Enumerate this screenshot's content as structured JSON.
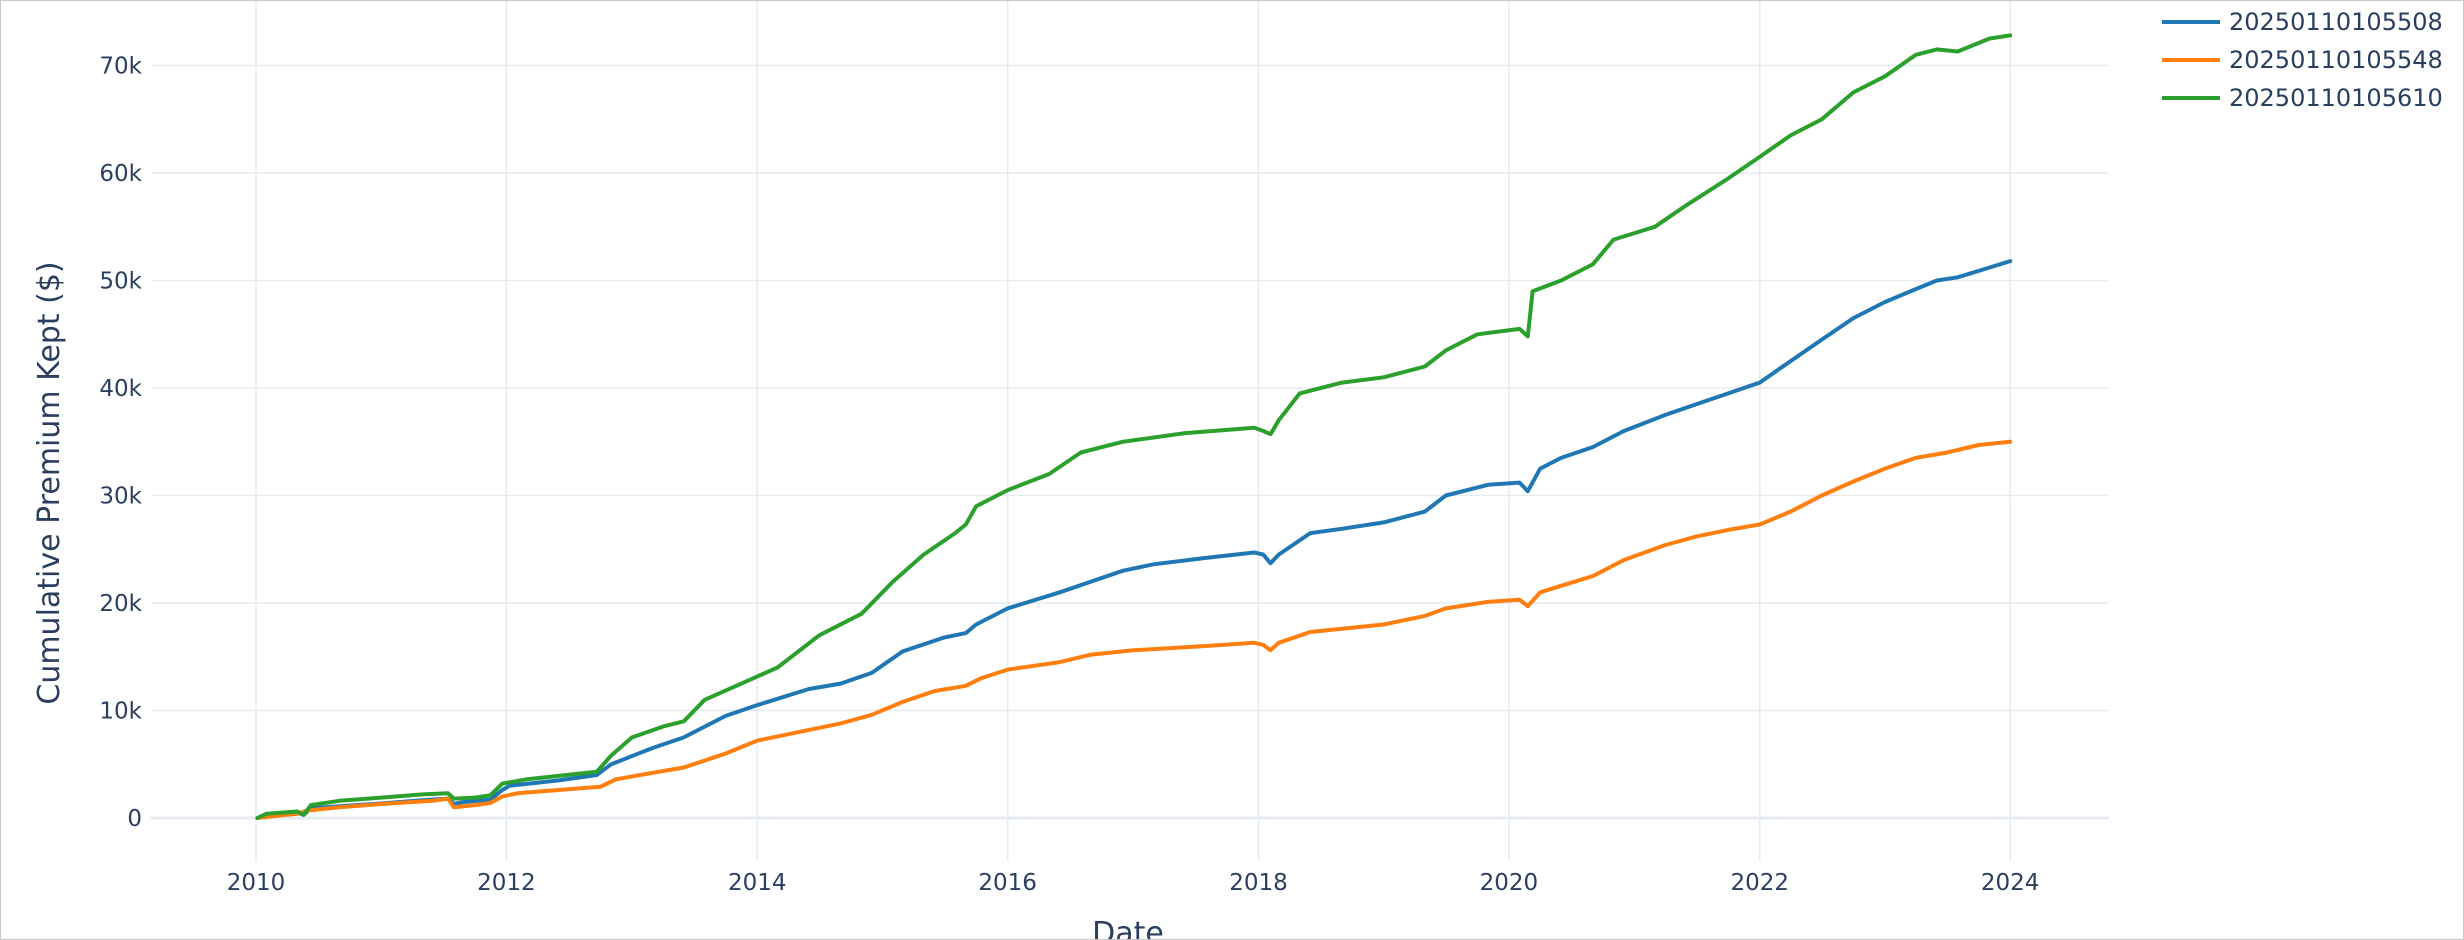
{
  "chart_data": {
    "type": "line",
    "title": "",
    "xlabel": "Date",
    "ylabel": "Cumulative Premium Kept ($)",
    "xlim": [
      "2009-03-01",
      "2024-10-15"
    ],
    "ylim": [
      -4000,
      76000
    ],
    "x_ticks": [
      {
        "value": "2010-01-01",
        "label": "2010"
      },
      {
        "value": "2012-01-01",
        "label": "2012"
      },
      {
        "value": "2014-01-01",
        "label": "2014"
      },
      {
        "value": "2016-01-01",
        "label": "2016"
      },
      {
        "value": "2018-01-01",
        "label": "2018"
      },
      {
        "value": "2020-01-01",
        "label": "2020"
      },
      {
        "value": "2022-01-01",
        "label": "2022"
      },
      {
        "value": "2024-01-01",
        "label": "2024"
      }
    ],
    "y_ticks": [
      {
        "value": 0,
        "label": "0"
      },
      {
        "value": 10000,
        "label": "10k"
      },
      {
        "value": 20000,
        "label": "20k"
      },
      {
        "value": 30000,
        "label": "30k"
      },
      {
        "value": 40000,
        "label": "40k"
      },
      {
        "value": 50000,
        "label": "50k"
      },
      {
        "value": 60000,
        "label": "60k"
      },
      {
        "value": 70000,
        "label": "70k"
      }
    ],
    "grid": true,
    "legend_position": "top-right",
    "series": [
      {
        "name": "20250110105508",
        "color": "#1f77b4",
        "points": [
          [
            "2010-01-05",
            0
          ],
          [
            "2010-02-01",
            300
          ],
          [
            "2010-05-01",
            500
          ],
          [
            "2010-05-20",
            300
          ],
          [
            "2010-06-10",
            900
          ],
          [
            "2010-09-01",
            1100
          ],
          [
            "2011-01-01",
            1350
          ],
          [
            "2011-05-01",
            1650
          ],
          [
            "2011-07-15",
            1800
          ],
          [
            "2011-08-01",
            1300
          ],
          [
            "2011-09-01",
            1500
          ],
          [
            "2011-11-15",
            1700
          ],
          [
            "2011-12-20",
            2600
          ],
          [
            "2012-01-10",
            3000
          ],
          [
            "2012-06-01",
            3500
          ],
          [
            "2012-09-20",
            4000
          ],
          [
            "2012-11-01",
            5000
          ],
          [
            "2013-03-01",
            6500
          ],
          [
            "2013-06-01",
            7500
          ],
          [
            "2013-10-01",
            9500
          ],
          [
            "2014-01-01",
            10500
          ],
          [
            "2014-06-01",
            12000
          ],
          [
            "2014-09-01",
            12500
          ],
          [
            "2014-12-01",
            13500
          ],
          [
            "2015-03-01",
            15500
          ],
          [
            "2015-07-01",
            16800
          ],
          [
            "2015-09-01",
            17200
          ],
          [
            "2015-10-01",
            18000
          ],
          [
            "2016-01-01",
            19500
          ],
          [
            "2016-06-01",
            21000
          ],
          [
            "2016-09-01",
            22000
          ],
          [
            "2016-12-01",
            23000
          ],
          [
            "2017-03-01",
            23600
          ],
          [
            "2017-08-01",
            24200
          ],
          [
            "2017-12-20",
            24700
          ],
          [
            "2018-01-15",
            24500
          ],
          [
            "2018-02-05",
            23700
          ],
          [
            "2018-03-01",
            24500
          ],
          [
            "2018-06-01",
            26500
          ],
          [
            "2018-09-01",
            26900
          ],
          [
            "2019-01-01",
            27500
          ],
          [
            "2019-05-01",
            28500
          ],
          [
            "2019-07-01",
            30000
          ],
          [
            "2019-11-01",
            31000
          ],
          [
            "2020-02-01",
            31200
          ],
          [
            "2020-02-25",
            30400
          ],
          [
            "2020-04-01",
            32500
          ],
          [
            "2020-06-01",
            33500
          ],
          [
            "2020-09-01",
            34500
          ],
          [
            "2020-12-01",
            36000
          ],
          [
            "2021-04-01",
            37500
          ],
          [
            "2021-07-01",
            38500
          ],
          [
            "2021-10-01",
            39500
          ],
          [
            "2022-01-01",
            40500
          ],
          [
            "2022-04-01",
            42500
          ],
          [
            "2022-07-01",
            44500
          ],
          [
            "2022-10-01",
            46500
          ],
          [
            "2023-01-01",
            48000
          ],
          [
            "2023-04-01",
            49200
          ],
          [
            "2023-06-01",
            50000
          ],
          [
            "2023-08-01",
            50300
          ],
          [
            "2023-11-01",
            51200
          ],
          [
            "2024-01-01",
            51800
          ]
        ]
      },
      {
        "name": "20250110105548",
        "color": "#ff7f0e",
        "points": [
          [
            "2010-01-05",
            0
          ],
          [
            "2010-03-01",
            200
          ],
          [
            "2010-05-01",
            400
          ],
          [
            "2010-06-01",
            700
          ],
          [
            "2010-09-01",
            1000
          ],
          [
            "2011-01-01",
            1300
          ],
          [
            "2011-06-01",
            1600
          ],
          [
            "2011-07-15",
            1800
          ],
          [
            "2011-08-01",
            1000
          ],
          [
            "2011-10-01",
            1200
          ],
          [
            "2011-11-15",
            1400
          ],
          [
            "2011-12-20",
            2000
          ],
          [
            "2012-02-01",
            2300
          ],
          [
            "2012-06-01",
            2600
          ],
          [
            "2012-10-01",
            2900
          ],
          [
            "2012-11-15",
            3600
          ],
          [
            "2013-03-01",
            4200
          ],
          [
            "2013-06-01",
            4700
          ],
          [
            "2013-10-01",
            6000
          ],
          [
            "2014-01-01",
            7200
          ],
          [
            "2014-06-01",
            8200
          ],
          [
            "2014-09-01",
            8800
          ],
          [
            "2014-12-01",
            9600
          ],
          [
            "2015-03-01",
            10800
          ],
          [
            "2015-06-01",
            11800
          ],
          [
            "2015-09-01",
            12300
          ],
          [
            "2015-10-15",
            13000
          ],
          [
            "2016-01-01",
            13800
          ],
          [
            "2016-06-01",
            14500
          ],
          [
            "2016-09-01",
            15200
          ],
          [
            "2017-01-01",
            15600
          ],
          [
            "2017-08-01",
            16000
          ],
          [
            "2017-12-20",
            16300
          ],
          [
            "2018-01-15",
            16100
          ],
          [
            "2018-02-05",
            15600
          ],
          [
            "2018-03-01",
            16300
          ],
          [
            "2018-06-01",
            17300
          ],
          [
            "2018-09-01",
            17600
          ],
          [
            "2019-01-01",
            18000
          ],
          [
            "2019-05-01",
            18800
          ],
          [
            "2019-07-01",
            19500
          ],
          [
            "2019-11-01",
            20100
          ],
          [
            "2020-02-01",
            20300
          ],
          [
            "2020-02-25",
            19700
          ],
          [
            "2020-04-01",
            21000
          ],
          [
            "2020-06-01",
            21600
          ],
          [
            "2020-09-01",
            22500
          ],
          [
            "2020-12-01",
            24000
          ],
          [
            "2021-04-01",
            25400
          ],
          [
            "2021-07-01",
            26200
          ],
          [
            "2021-10-01",
            26800
          ],
          [
            "2022-01-01",
            27300
          ],
          [
            "2022-04-01",
            28500
          ],
          [
            "2022-07-01",
            30000
          ],
          [
            "2022-10-01",
            31300
          ],
          [
            "2023-01-01",
            32500
          ],
          [
            "2023-04-01",
            33500
          ],
          [
            "2023-07-01",
            34000
          ],
          [
            "2023-10-01",
            34700
          ],
          [
            "2024-01-01",
            35000
          ]
        ]
      },
      {
        "name": "20250110105610",
        "color": "#2ca02c",
        "points": [
          [
            "2010-01-05",
            0
          ],
          [
            "2010-02-01",
            400
          ],
          [
            "2010-05-01",
            600
          ],
          [
            "2010-05-20",
            300
          ],
          [
            "2010-06-10",
            1200
          ],
          [
            "2010-09-01",
            1600
          ],
          [
            "2011-01-01",
            1900
          ],
          [
            "2011-05-01",
            2200
          ],
          [
            "2011-07-15",
            2300
          ],
          [
            "2011-08-01",
            1800
          ],
          [
            "2011-10-01",
            1900
          ],
          [
            "2011-11-15",
            2100
          ],
          [
            "2011-12-20",
            3200
          ],
          [
            "2012-03-01",
            3600
          ],
          [
            "2012-09-20",
            4300
          ],
          [
            "2012-11-01",
            5800
          ],
          [
            "2013-01-01",
            7500
          ],
          [
            "2013-04-01",
            8500
          ],
          [
            "2013-06-01",
            9000
          ],
          [
            "2013-08-01",
            11000
          ],
          [
            "2013-11-01",
            12300
          ],
          [
            "2014-03-01",
            14000
          ],
          [
            "2014-07-01",
            17000
          ],
          [
            "2014-11-01",
            19000
          ],
          [
            "2015-02-01",
            22000
          ],
          [
            "2015-05-01",
            24500
          ],
          [
            "2015-08-01",
            26500
          ],
          [
            "2015-09-01",
            27300
          ],
          [
            "2015-10-01",
            29000
          ],
          [
            "2016-01-01",
            30500
          ],
          [
            "2016-05-01",
            32000
          ],
          [
            "2016-08-01",
            34000
          ],
          [
            "2016-12-01",
            35000
          ],
          [
            "2017-06-01",
            35800
          ],
          [
            "2017-12-20",
            36300
          ],
          [
            "2018-01-15",
            36000
          ],
          [
            "2018-02-05",
            35700
          ],
          [
            "2018-03-01",
            37000
          ],
          [
            "2018-05-01",
            39500
          ],
          [
            "2018-09-01",
            40500
          ],
          [
            "2019-01-01",
            41000
          ],
          [
            "2019-05-01",
            42000
          ],
          [
            "2019-07-01",
            43500
          ],
          [
            "2019-10-01",
            45000
          ],
          [
            "2020-02-01",
            45500
          ],
          [
            "2020-02-25",
            44800
          ],
          [
            "2020-03-10",
            49000
          ],
          [
            "2020-06-01",
            50000
          ],
          [
            "2020-09-01",
            51500
          ],
          [
            "2020-11-01",
            53800
          ],
          [
            "2021-03-01",
            55000
          ],
          [
            "2021-06-01",
            57000
          ],
          [
            "2021-10-01",
            59500
          ],
          [
            "2022-01-01",
            61500
          ],
          [
            "2022-04-01",
            63500
          ],
          [
            "2022-07-01",
            65000
          ],
          [
            "2022-10-01",
            67500
          ],
          [
            "2023-01-01",
            69000
          ],
          [
            "2023-04-01",
            71000
          ],
          [
            "2023-06-01",
            71500
          ],
          [
            "2023-08-01",
            71300
          ],
          [
            "2023-11-01",
            72500
          ],
          [
            "2024-01-01",
            72800
          ]
        ]
      }
    ]
  }
}
